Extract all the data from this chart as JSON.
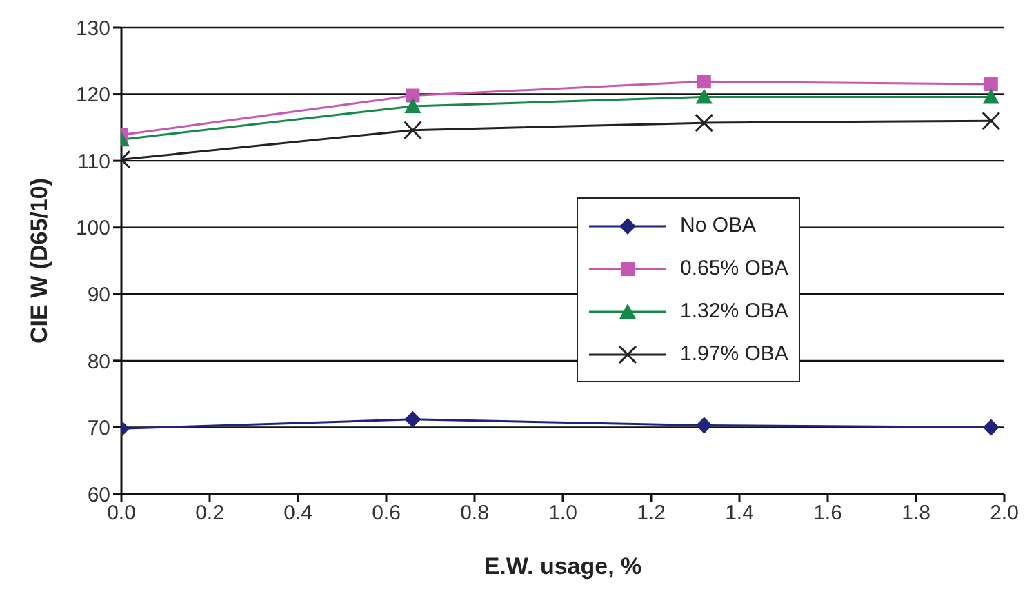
{
  "chart_data": {
    "type": "line",
    "xlabel": "E.W. usage, %",
    "ylabel": "CIE W (D65/10)",
    "x": [
      0,
      0.66,
      1.32,
      1.97
    ],
    "series": [
      {
        "name": "No OBA",
        "color": "#1f237a",
        "values": [
          69.8,
          71.2,
          70.3,
          70.0
        ],
        "marker": "diamond"
      },
      {
        "name": "0.65% OBA",
        "color": "#c558b5",
        "values": [
          113.9,
          119.8,
          121.9,
          121.5
        ],
        "marker": "square"
      },
      {
        "name": "1.32% OBA",
        "color": "#15894a",
        "values": [
          113.2,
          118.2,
          119.6,
          119.6
        ],
        "marker": "triangle"
      },
      {
        "name": "1.97% OBA",
        "color": "#222222",
        "values": [
          110.2,
          114.6,
          115.7,
          116.0
        ],
        "marker": "cross"
      }
    ],
    "xlim": [
      0,
      2
    ],
    "xticks": [
      {
        "value": 0,
        "label": "0.0"
      },
      {
        "value": 0.2,
        "label": "0.2"
      },
      {
        "value": 0.4,
        "label": "0.4"
      },
      {
        "value": 0.6,
        "label": "0.6"
      },
      {
        "value": 0.8,
        "label": "0.8"
      },
      {
        "value": 1,
        "label": "1.0"
      },
      {
        "value": 1.2,
        "label": "1.2"
      },
      {
        "value": 1.4,
        "label": "1.4"
      },
      {
        "value": 1.6,
        "label": "1.6"
      },
      {
        "value": 1.8,
        "label": "1.8"
      },
      {
        "value": 2,
        "label": "2.0"
      }
    ],
    "ylim": [
      60,
      130
    ],
    "yticks": [
      60,
      70,
      80,
      90,
      100,
      110,
      120,
      130
    ],
    "grid": "y",
    "legend": "right",
    "line_style": "solid"
  }
}
